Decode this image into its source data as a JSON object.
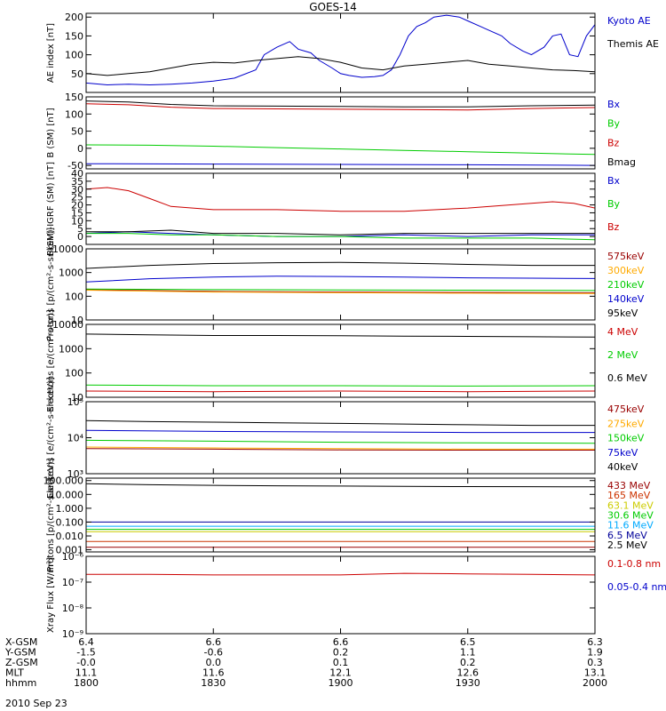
{
  "title": "GOES-14",
  "date_label": "2010 Sep 23",
  "chart_data": [
    {
      "type": "line",
      "ylabel": "AE index [nT]",
      "ylim": [
        0,
        210
      ],
      "yscale": "linear",
      "yticks": [
        50,
        100,
        150,
        200
      ],
      "yticklabels": [
        "50",
        "100",
        "150",
        "200"
      ],
      "series": [
        {
          "name": "Kyoto AE",
          "color": "#0000cc",
          "x": [
            1800,
            1805,
            1810,
            1815,
            1820,
            1825,
            1830,
            1835,
            1840,
            1842,
            1845,
            1848,
            1850,
            1853,
            1855,
            1858,
            1900,
            1902,
            1905,
            1908,
            1910,
            1912,
            1914,
            1916,
            1918,
            1920,
            1922,
            1925,
            1928,
            1930,
            1933,
            1935,
            1938,
            1940,
            1943,
            1945,
            1948,
            1950,
            1952,
            1954,
            1956,
            1958,
            2000
          ],
          "y": [
            25,
            20,
            22,
            20,
            22,
            25,
            30,
            38,
            60,
            100,
            120,
            135,
            115,
            105,
            85,
            65,
            50,
            45,
            40,
            42,
            45,
            60,
            100,
            150,
            175,
            185,
            200,
            205,
            200,
            190,
            175,
            165,
            150,
            130,
            110,
            100,
            120,
            150,
            155,
            100,
            95,
            150,
            180
          ]
        },
        {
          "name": "Themis AE",
          "color": "#000000",
          "x": [
            1800,
            1805,
            1810,
            1815,
            1820,
            1825,
            1830,
            1835,
            1840,
            1845,
            1850,
            1855,
            1900,
            1905,
            1910,
            1915,
            1920,
            1925,
            1930,
            1935,
            1940,
            1945,
            1950,
            1955,
            2000
          ],
          "y": [
            50,
            45,
            50,
            55,
            65,
            75,
            80,
            78,
            85,
            90,
            95,
            90,
            80,
            65,
            60,
            70,
            75,
            80,
            85,
            75,
            70,
            65,
            60,
            58,
            55
          ]
        }
      ]
    },
    {
      "type": "line",
      "ylabel": "B (SM) [nT]",
      "ylim": [
        -60,
        150
      ],
      "yscale": "linear",
      "yticks": [
        -50,
        0,
        50,
        100,
        150
      ],
      "yticklabels": [
        "-50",
        "0",
        "50",
        "100",
        "150"
      ],
      "series": [
        {
          "name": "Bx",
          "color": "#0000cc",
          "x": [
            1800,
            1830,
            1900,
            1930,
            2000
          ],
          "y": [
            -45,
            -46,
            -47,
            -48,
            -50
          ]
        },
        {
          "name": "By",
          "color": "#00cc00",
          "x": [
            1800,
            1815,
            1830,
            1845,
            1900,
            1915,
            1930,
            1945,
            2000
          ],
          "y": [
            10,
            9,
            6,
            2,
            -2,
            -6,
            -10,
            -14,
            -18
          ]
        },
        {
          "name": "Bz",
          "color": "#cc0000",
          "x": [
            1800,
            1810,
            1820,
            1830,
            1845,
            1900,
            1915,
            1930,
            1945,
            2000
          ],
          "y": [
            130,
            127,
            120,
            116,
            115,
            114,
            113,
            112,
            116,
            119
          ]
        },
        {
          "name": "Bmag",
          "color": "#000000",
          "x": [
            1800,
            1810,
            1820,
            1830,
            1845,
            1900,
            1915,
            1930,
            1945,
            2000
          ],
          "y": [
            138,
            135,
            128,
            124,
            123,
            122,
            121,
            121,
            124,
            126
          ]
        }
      ]
    },
    {
      "type": "line",
      "ylabel": "B(SM)-IGRF (SM) [nT]",
      "ylim": [
        -5,
        40
      ],
      "yscale": "linear",
      "yticks": [
        -5,
        0,
        5,
        10,
        15,
        20,
        25,
        30,
        35,
        40
      ],
      "yticklabels": [
        "",
        "0",
        "5",
        "10",
        "15",
        "20",
        "25",
        "30",
        "35",
        "40"
      ],
      "series": [
        {
          "name": "Bx",
          "color": "#0000cc",
          "x": [
            1800,
            1810,
            1820,
            1830,
            1845,
            1900,
            1915,
            1930,
            1945,
            2000
          ],
          "y": [
            2,
            3,
            2,
            1,
            0,
            0,
            1,
            0,
            1,
            1
          ]
        },
        {
          "name": "By",
          "color": "#00cc00",
          "x": [
            1800,
            1810,
            1820,
            1830,
            1845,
            1900,
            1915,
            1930,
            1945,
            2000
          ],
          "y": [
            2,
            2,
            1,
            1,
            0,
            0,
            -1,
            -1,
            -1,
            -2
          ]
        },
        {
          "name": "Bz",
          "color": "#cc0000",
          "x": [
            1800,
            1805,
            1810,
            1815,
            1820,
            1830,
            1845,
            1900,
            1915,
            1930,
            1945,
            1950,
            1955,
            2000
          ],
          "y": [
            30,
            31,
            29,
            24,
            19,
            17,
            17,
            16,
            16,
            18,
            21,
            22,
            21,
            18
          ]
        },
        {
          "name": "",
          "color": "#000000",
          "x": [
            1800,
            1810,
            1820,
            1830,
            1845,
            1900,
            1915,
            1930,
            1945,
            2000
          ],
          "y": [
            3,
            3,
            4,
            2,
            2,
            1,
            2,
            2,
            2,
            2
          ]
        }
      ]
    },
    {
      "type": "line",
      "ylabel": "Protons [p/(cm²-s-sr-keV)]",
      "ylim": [
        10,
        10000
      ],
      "yscale": "log",
      "yticks": [
        10,
        100,
        1000,
        10000
      ],
      "yticklabels": [
        "10",
        "100",
        "1000",
        "10000"
      ],
      "series": [
        {
          "name": "575keV",
          "color": "#990000",
          "x": [
            1800,
            1830,
            1900,
            1930,
            2000
          ],
          "y": [
            190,
            160,
            150,
            145,
            140
          ]
        },
        {
          "name": "300keV",
          "color": "#ffaa00",
          "x": [
            1800,
            1830,
            1900,
            1930,
            2000
          ],
          "y": [
            180,
            150,
            140,
            135,
            130
          ]
        },
        {
          "name": "210keV",
          "color": "#00cc00",
          "x": [
            1800,
            1830,
            1900,
            1930,
            2000
          ],
          "y": [
            200,
            190,
            185,
            180,
            175
          ]
        },
        {
          "name": "140keV",
          "color": "#0000cc",
          "x": [
            1800,
            1815,
            1830,
            1845,
            1900,
            1915,
            1930,
            1945,
            2000
          ],
          "y": [
            400,
            550,
            650,
            700,
            680,
            650,
            600,
            580,
            560
          ]
        },
        {
          "name": "95keV",
          "color": "#000000",
          "x": [
            1800,
            1815,
            1830,
            1845,
            1900,
            1915,
            1930,
            1945,
            2000
          ],
          "y": [
            1500,
            2000,
            2400,
            2600,
            2700,
            2500,
            2200,
            2000,
            2000
          ]
        }
      ]
    },
    {
      "type": "line",
      "ylabel": "Electrons [e/(cm²-s-sr)]",
      "ylim": [
        10,
        10000
      ],
      "yscale": "log",
      "yticks": [
        10,
        100,
        1000,
        10000
      ],
      "yticklabels": [
        "10",
        "100",
        "1000",
        "10000"
      ],
      "series": [
        {
          "name": "4 MeV",
          "color": "#cc0000",
          "x": [
            1800,
            1830,
            1900,
            1930,
            2000
          ],
          "y": [
            18,
            17,
            18,
            17,
            18
          ]
        },
        {
          "name": "2 MeV",
          "color": "#00cc00",
          "x": [
            1800,
            1830,
            1900,
            1930,
            2000
          ],
          "y": [
            32,
            30,
            30,
            29,
            30
          ]
        },
        {
          "name": "0.6 MeV",
          "color": "#000000",
          "x": [
            1800,
            1815,
            1830,
            1845,
            1900,
            1915,
            1930,
            1945,
            2000
          ],
          "y": [
            4000,
            3700,
            3500,
            3500,
            3400,
            3300,
            3200,
            3100,
            3000
          ]
        }
      ]
    },
    {
      "type": "line",
      "ylabel": "Electrons [e/(cm²-s-sr-keV)]",
      "ylim": [
        1000,
        100000
      ],
      "yscale": "log",
      "yticks": [
        1000,
        10000,
        100000
      ],
      "yticklabels": [
        "10³",
        "10⁴",
        "10⁵"
      ],
      "series": [
        {
          "name": "475keV",
          "color": "#990000",
          "x": [
            1800,
            1830,
            1900,
            1930,
            2000
          ],
          "y": [
            5000,
            4800,
            4600,
            4500,
            4500
          ]
        },
        {
          "name": "275keV",
          "color": "#ffaa00",
          "x": [
            1800,
            1830,
            1900,
            1930,
            2000
          ],
          "y": [
            5500,
            5200,
            5000,
            4800,
            4800
          ]
        },
        {
          "name": "150keV",
          "color": "#00cc00",
          "x": [
            1800,
            1830,
            1900,
            1930,
            2000
          ],
          "y": [
            8500,
            8000,
            7500,
            7200,
            7000
          ]
        },
        {
          "name": "75keV",
          "color": "#0000cc",
          "x": [
            1800,
            1830,
            1900,
            1930,
            2000
          ],
          "y": [
            16000,
            15000,
            14500,
            14000,
            14000
          ]
        },
        {
          "name": "40keV",
          "color": "#000000",
          "x": [
            1800,
            1815,
            1830,
            1845,
            1900,
            1915,
            1930,
            1945,
            2000
          ],
          "y": [
            30000,
            28000,
            27000,
            26000,
            25000,
            24000,
            23000,
            22000,
            22000
          ]
        }
      ]
    },
    {
      "type": "line",
      "ylabel": "Protons [p/(cm²-s-sr-keV)]",
      "ylim": [
        0.0007,
        150
      ],
      "yscale": "log",
      "yticks": [
        0.001,
        0.01,
        0.1,
        1,
        10,
        100
      ],
      "yticklabels": [
        "0.001",
        "0.010",
        "0.100",
        "1.000",
        "10.000",
        "100.000"
      ],
      "series": [
        {
          "name": "433 MeV",
          "color": "#990000",
          "x": [
            1800,
            1830,
            1900,
            1930,
            2000
          ],
          "y": [
            0.0015,
            0.0015,
            0.0015,
            0.0015,
            0.0015
          ]
        },
        {
          "name": "165 MeV",
          "color": "#cc3300",
          "x": [
            1800,
            1830,
            1900,
            1930,
            2000
          ],
          "y": [
            0.004,
            0.004,
            0.004,
            0.004,
            0.004
          ]
        },
        {
          "name": "63.1 MeV",
          "color": "#cccc00",
          "x": [
            1800,
            1830,
            1900,
            1930,
            2000
          ],
          "y": [
            0.02,
            0.02,
            0.02,
            0.02,
            0.02
          ]
        },
        {
          "name": "30.6 MeV",
          "color": "#00cc00",
          "x": [
            1800,
            1830,
            1900,
            1930,
            2000
          ],
          "y": [
            0.03,
            0.03,
            0.03,
            0.03,
            0.03
          ]
        },
        {
          "name": "11.6 MeV",
          "color": "#00aaff",
          "x": [
            1800,
            1830,
            1900,
            1930,
            2000
          ],
          "y": [
            0.05,
            0.05,
            0.05,
            0.05,
            0.05
          ]
        },
        {
          "name": "6.5 MeV",
          "color": "#000099",
          "x": [
            1800,
            1830,
            1900,
            1930,
            2000
          ],
          "y": [
            0.1,
            0.1,
            0.1,
            0.1,
            0.1
          ]
        },
        {
          "name": "2.5 MeV",
          "color": "#000000",
          "x": [
            1800,
            1815,
            1830,
            1845,
            1900,
            1915,
            1930,
            1945,
            2000
          ],
          "y": [
            60,
            50,
            45,
            42,
            40,
            38,
            37,
            36,
            35
          ]
        }
      ]
    },
    {
      "type": "line",
      "ylabel": "Xray Flux [W/m²]",
      "ylim": [
        1e-09,
        1e-06
      ],
      "yscale": "log",
      "yticks": [
        1e-09,
        1e-08,
        1e-07,
        1e-06
      ],
      "yticklabels": [
        "10⁻⁹",
        "10⁻⁸",
        "10⁻⁷",
        "10⁻⁶"
      ],
      "series": [
        {
          "name": "0.1-0.8 nm",
          "color": "#cc0000",
          "x": [
            1800,
            1815,
            1830,
            1845,
            1900,
            1915,
            1930,
            1945,
            2000
          ],
          "y": [
            2e-07,
            2e-07,
            1.9e-07,
            1.9e-07,
            1.9e-07,
            2.2e-07,
            2.1e-07,
            2e-07,
            1.9e-07
          ]
        },
        {
          "name": "0.05-0.4 nm",
          "color": "#0000cc",
          "x": [
            1800,
            1830,
            1900,
            1930,
            2000
          ],
          "y": [
            1e-09,
            1e-09,
            1e-09,
            1e-09,
            1e-09
          ]
        }
      ]
    }
  ],
  "x_axis": {
    "range": [
      1800,
      2000
    ],
    "ticks": [
      1800,
      1830,
      1900,
      1930,
      2000
    ],
    "rows": [
      {
        "label": "X-GSM",
        "values": [
          "6.4",
          "6.6",
          "6.6",
          "6.5",
          "6.3"
        ]
      },
      {
        "label": "Y-GSM",
        "values": [
          "-1.5",
          "-0.6",
          "0.2",
          "1.1",
          "1.9"
        ]
      },
      {
        "label": "Z-GSM",
        "values": [
          "-0.0",
          "0.0",
          "0.1",
          "0.2",
          "0.3"
        ]
      },
      {
        "label": "MLT",
        "values": [
          "11.1",
          "11.6",
          "12.1",
          "12.6",
          "13.1"
        ]
      },
      {
        "label": "hhmm",
        "values": [
          "1800",
          "1830",
          "1900",
          "1930",
          "2000"
        ]
      }
    ]
  }
}
